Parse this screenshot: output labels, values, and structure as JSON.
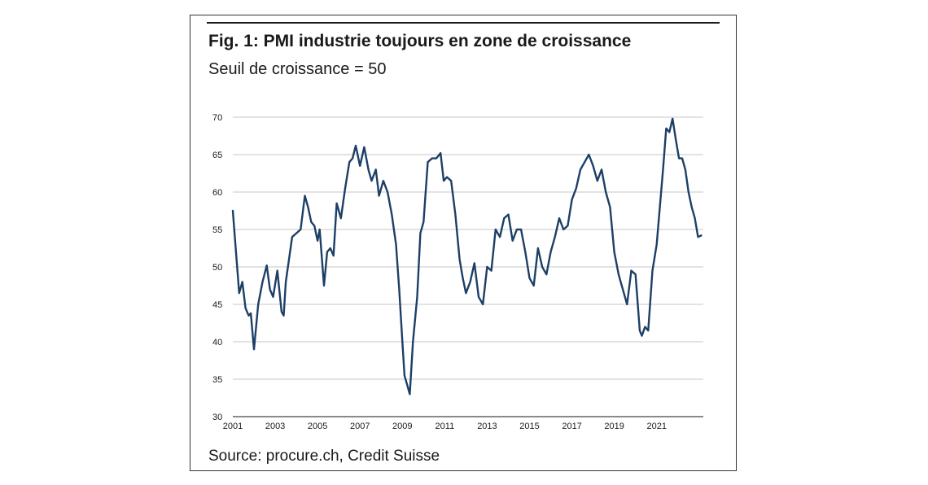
{
  "figure": {
    "title": "Fig. 1: PMI industrie toujours en zone de croissance",
    "subtitle": "Seuil de croissance = 50",
    "source": "Source: procure.ch, Credit Suisse"
  },
  "chart_data": {
    "type": "line",
    "title": "Fig. 1: PMI industrie toujours en zone de croissance",
    "subtitle": "Seuil de croissance = 50",
    "xlabel": "",
    "ylabel": "",
    "xlim": [
      2001,
      2023.2
    ],
    "ylim": [
      30,
      70
    ],
    "yticks": [
      30,
      35,
      40,
      45,
      50,
      55,
      60,
      65,
      70
    ],
    "xticks": [
      2001,
      2003,
      2005,
      2007,
      2009,
      2011,
      2013,
      2015,
      2017,
      2019,
      2021
    ],
    "grid": true,
    "legend": "none",
    "line_color": "#1d3f66",
    "series": [
      {
        "x": [
          2001.0,
          2001.15,
          2001.3,
          2001.45,
          2001.6,
          2001.75,
          2001.85,
          2002.0,
          2002.2,
          2002.4,
          2002.6,
          2002.75,
          2002.9,
          2003.1,
          2003.3,
          2003.4,
          2003.5,
          2003.65,
          2003.8,
          2004.0,
          2004.2,
          2004.4,
          2004.55,
          2004.7,
          2004.85,
          2005.0,
          2005.1,
          2005.3,
          2005.45,
          2005.6,
          2005.75,
          2005.9,
          2006.1,
          2006.3,
          2006.5,
          2006.65,
          2006.8,
          2007.0,
          2007.2,
          2007.4,
          2007.55,
          2007.75,
          2007.9,
          2008.1,
          2008.3,
          2008.5,
          2008.7,
          2008.85,
          2009.0,
          2009.1,
          2009.2,
          2009.35,
          2009.5,
          2009.7,
          2009.85,
          2010.0,
          2010.2,
          2010.4,
          2010.6,
          2010.8,
          2010.95,
          2011.1,
          2011.3,
          2011.5,
          2011.7,
          2011.85,
          2012.0,
          2012.2,
          2012.4,
          2012.6,
          2012.8,
          2013.0,
          2013.2,
          2013.4,
          2013.6,
          2013.8,
          2014.0,
          2014.2,
          2014.4,
          2014.6,
          2014.8,
          2015.0,
          2015.2,
          2015.4,
          2015.6,
          2015.8,
          2016.0,
          2016.2,
          2016.4,
          2016.6,
          2016.8,
          2017.0,
          2017.2,
          2017.4,
          2017.6,
          2017.8,
          2018.0,
          2018.2,
          2018.4,
          2018.6,
          2018.8,
          2019.0,
          2019.2,
          2019.4,
          2019.6,
          2019.8,
          2020.0,
          2020.2,
          2020.3,
          2020.45,
          2020.6,
          2020.8,
          2021.0,
          2021.15,
          2021.3,
          2021.45,
          2021.6,
          2021.75,
          2021.9,
          2022.05,
          2022.2,
          2022.35,
          2022.5,
          2022.65,
          2022.8,
          2022.95,
          2023.1
        ],
        "values": [
          57.5,
          52.0,
          46.5,
          48.0,
          44.5,
          43.5,
          43.8,
          39.0,
          45.0,
          48.0,
          50.2,
          47.0,
          46.0,
          49.5,
          44.0,
          43.5,
          48.0,
          51.0,
          54.0,
          54.5,
          55.0,
          59.5,
          58.0,
          56.0,
          55.5,
          53.5,
          55.0,
          47.5,
          52.0,
          52.5,
          51.5,
          58.5,
          56.5,
          60.5,
          64.0,
          64.5,
          66.2,
          63.5,
          66.0,
          63.0,
          61.5,
          63.0,
          59.5,
          61.5,
          60.0,
          57.0,
          53.0,
          47.0,
          40.0,
          35.5,
          34.5,
          33.0,
          40.0,
          46.0,
          54.5,
          56.0,
          64.0,
          64.5,
          64.5,
          65.2,
          61.5,
          62.0,
          61.5,
          57.0,
          51.0,
          48.5,
          46.5,
          48.0,
          50.5,
          46.0,
          45.0,
          50.0,
          49.5,
          55.0,
          54.0,
          56.5,
          57.0,
          53.5,
          55.0,
          55.0,
          52.0,
          48.5,
          47.5,
          52.5,
          50.0,
          49.0,
          52.0,
          54.0,
          56.5,
          55.0,
          55.5,
          59.0,
          60.5,
          63.0,
          64.0,
          65.0,
          63.5,
          61.5,
          63.0,
          60.0,
          58.0,
          52.0,
          49.0,
          47.0,
          45.0,
          49.5,
          49.0,
          41.5,
          40.8,
          42.0,
          41.5,
          49.5,
          53.0,
          58.0,
          63.0,
          68.5,
          68.0,
          69.8,
          67.0,
          64.5,
          64.5,
          63.0,
          60.0,
          58.0,
          56.5,
          54.0,
          54.2
        ]
      }
    ]
  }
}
